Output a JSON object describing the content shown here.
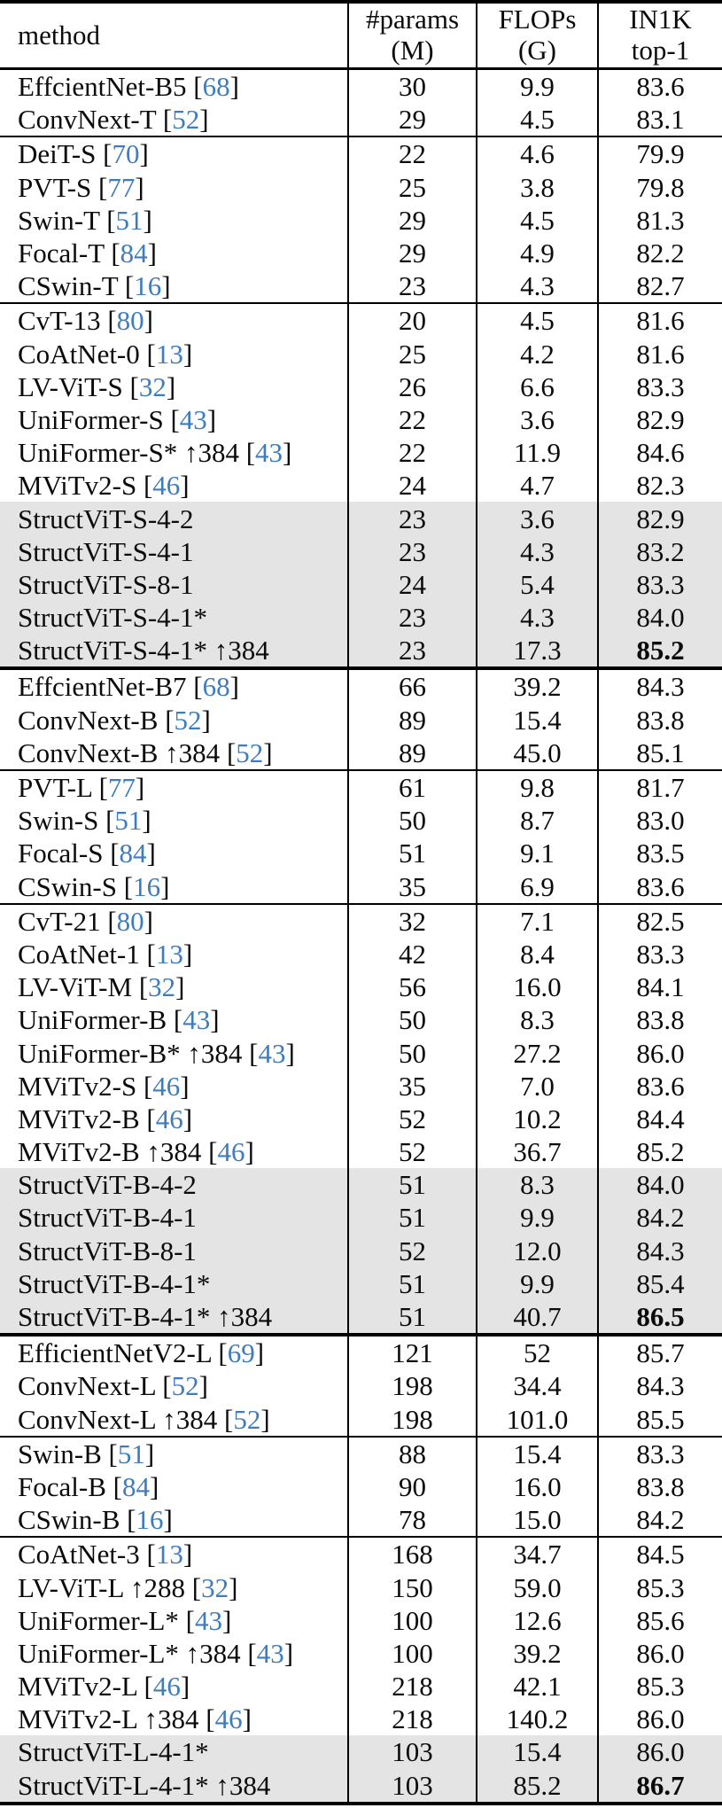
{
  "colors": {
    "cite_blue": "#3e7cbd",
    "row_shade": "#e4e4e4"
  },
  "header": {
    "columns": [
      {
        "lines": [
          "method"
        ]
      },
      {
        "lines": [
          "#params",
          "(M)"
        ]
      },
      {
        "lines": [
          "FLOPs",
          "(G)"
        ]
      },
      {
        "lines": [
          "IN1K",
          "top-1"
        ]
      }
    ]
  },
  "sections": [
    {
      "groups": [
        {
          "rows": [
            {
              "name": "EffcientNet-B5",
              "cite": "68",
              "params": "30",
              "flops": "9.9",
              "top1": "83.6"
            },
            {
              "name": "ConvNext-T",
              "cite": "52",
              "params": "29",
              "flops": "4.5",
              "top1": "83.1"
            }
          ]
        },
        {
          "rows": [
            {
              "name": "DeiT-S",
              "cite": "70",
              "params": "22",
              "flops": "4.6",
              "top1": "79.9"
            },
            {
              "name": "PVT-S",
              "cite": "77",
              "params": "25",
              "flops": "3.8",
              "top1": "79.8"
            },
            {
              "name": "Swin-T",
              "cite": "51",
              "params": "29",
              "flops": "4.5",
              "top1": "81.3"
            },
            {
              "name": "Focal-T",
              "cite": "84",
              "params": "29",
              "flops": "4.9",
              "top1": "82.2"
            },
            {
              "name": "CSwin-T",
              "cite": "16",
              "params": "23",
              "flops": "4.3",
              "top1": "82.7"
            }
          ]
        },
        {
          "rows": [
            {
              "name": "CvT-13",
              "cite": "80",
              "params": "20",
              "flops": "4.5",
              "top1": "81.6"
            },
            {
              "name": "CoAtNet-0",
              "cite": "13",
              "params": "25",
              "flops": "4.2",
              "top1": "81.6"
            },
            {
              "name": "LV-ViT-S",
              "cite": "32",
              "params": "26",
              "flops": "6.6",
              "top1": "83.3"
            },
            {
              "name": "UniFormer-S",
              "cite": "43",
              "params": "22",
              "flops": "3.6",
              "top1": "82.9"
            },
            {
              "name": "UniFormer-S* ↑384",
              "cite": "43",
              "params": "22",
              "flops": "11.9",
              "top1": "84.6"
            },
            {
              "name": "MViTv2-S",
              "cite": "46",
              "params": "24",
              "flops": "4.7",
              "top1": "82.3"
            },
            {
              "name": "StructViT-S-4-2",
              "cite": null,
              "params": "23",
              "flops": "3.6",
              "top1": "82.9",
              "shaded": true
            },
            {
              "name": "StructViT-S-4-1",
              "cite": null,
              "params": "23",
              "flops": "4.3",
              "top1": "83.2",
              "shaded": true
            },
            {
              "name": "StructViT-S-8-1",
              "cite": null,
              "params": "24",
              "flops": "5.4",
              "top1": "83.3",
              "shaded": true
            },
            {
              "name": "StructViT-S-4-1*",
              "cite": null,
              "params": "23",
              "flops": "4.3",
              "top1": "84.0",
              "shaded": true
            },
            {
              "name": "StructViT-S-4-1* ↑384",
              "cite": null,
              "params": "23",
              "flops": "17.3",
              "top1": "85.2",
              "shaded": true,
              "bold": true
            }
          ]
        }
      ]
    },
    {
      "groups": [
        {
          "rows": [
            {
              "name": "EffcientNet-B7",
              "cite": "68",
              "params": "66",
              "flops": "39.2",
              "top1": "84.3"
            },
            {
              "name": "ConvNext-B",
              "cite": "52",
              "params": "89",
              "flops": "15.4",
              "top1": "83.8"
            },
            {
              "name": "ConvNext-B ↑384",
              "cite": "52",
              "params": "89",
              "flops": "45.0",
              "top1": "85.1"
            }
          ]
        },
        {
          "rows": [
            {
              "name": "PVT-L",
              "cite": "77",
              "params": "61",
              "flops": "9.8",
              "top1": "81.7"
            },
            {
              "name": "Swin-S",
              "cite": "51",
              "params": "50",
              "flops": "8.7",
              "top1": "83.0"
            },
            {
              "name": "Focal-S",
              "cite": "84",
              "params": "51",
              "flops": "9.1",
              "top1": "83.5"
            },
            {
              "name": "CSwin-S",
              "cite": "16",
              "params": "35",
              "flops": "6.9",
              "top1": "83.6"
            }
          ]
        },
        {
          "rows": [
            {
              "name": "CvT-21",
              "cite": "80",
              "params": "32",
              "flops": "7.1",
              "top1": "82.5"
            },
            {
              "name": "CoAtNet-1",
              "cite": "13",
              "params": "42",
              "flops": "8.4",
              "top1": "83.3"
            },
            {
              "name": "LV-ViT-M",
              "cite": "32",
              "params": "56",
              "flops": "16.0",
              "top1": "84.1"
            },
            {
              "name": "UniFormer-B",
              "cite": "43",
              "params": "50",
              "flops": "8.3",
              "top1": "83.8"
            },
            {
              "name": "UniFormer-B* ↑384",
              "cite": "43",
              "params": "50",
              "flops": "27.2",
              "top1": "86.0"
            },
            {
              "name": "MViTv2-S",
              "cite": "46",
              "params": "35",
              "flops": "7.0",
              "top1": "83.6"
            },
            {
              "name": "MViTv2-B",
              "cite": "46",
              "params": "52",
              "flops": "10.2",
              "top1": "84.4"
            },
            {
              "name": "MViTv2-B ↑384",
              "cite": "46",
              "params": "52",
              "flops": "36.7",
              "top1": "85.2"
            },
            {
              "name": "StructViT-B-4-2",
              "cite": null,
              "params": "51",
              "flops": "8.3",
              "top1": "84.0",
              "shaded": true
            },
            {
              "name": "StructViT-B-4-1",
              "cite": null,
              "params": "51",
              "flops": "9.9",
              "top1": "84.2",
              "shaded": true
            },
            {
              "name": "StructViT-B-8-1",
              "cite": null,
              "params": "52",
              "flops": "12.0",
              "top1": "84.3",
              "shaded": true
            },
            {
              "name": "StructViT-B-4-1*",
              "cite": null,
              "params": "51",
              "flops": "9.9",
              "top1": "85.4",
              "shaded": true
            },
            {
              "name": "StructViT-B-4-1* ↑384",
              "cite": null,
              "params": "51",
              "flops": "40.7",
              "top1": "86.5",
              "shaded": true,
              "bold": true
            }
          ]
        }
      ]
    },
    {
      "groups": [
        {
          "rows": [
            {
              "name": "EfficientNetV2-L",
              "cite": "69",
              "params": "121",
              "flops": "52",
              "top1": "85.7"
            },
            {
              "name": "ConvNext-L",
              "cite": "52",
              "params": "198",
              "flops": "34.4",
              "top1": "84.3"
            },
            {
              "name": "ConvNext-L ↑384",
              "cite": "52",
              "params": "198",
              "flops": "101.0",
              "top1": "85.5"
            }
          ]
        },
        {
          "rows": [
            {
              "name": "Swin-B",
              "cite": "51",
              "params": "88",
              "flops": "15.4",
              "top1": "83.3"
            },
            {
              "name": "Focal-B",
              "cite": "84",
              "params": "90",
              "flops": "16.0",
              "top1": "83.8"
            },
            {
              "name": "CSwin-B",
              "cite": "16",
              "params": "78",
              "flops": "15.0",
              "top1": "84.2"
            }
          ]
        },
        {
          "rows": [
            {
              "name": "CoAtNet-3",
              "cite": "13",
              "params": "168",
              "flops": "34.7",
              "top1": "84.5"
            },
            {
              "name": "LV-ViT-L ↑288",
              "cite": "32",
              "params": "150",
              "flops": "59.0",
              "top1": "85.3"
            },
            {
              "name": "UniFormer-L*",
              "cite": "43",
              "params": "100",
              "flops": "12.6",
              "top1": "85.6"
            },
            {
              "name": "UniFormer-L* ↑384",
              "cite": "43",
              "params": "100",
              "flops": "39.2",
              "top1": "86.0"
            },
            {
              "name": "MViTv2-L",
              "cite": "46",
              "params": "218",
              "flops": "42.1",
              "top1": "85.3"
            },
            {
              "name": "MViTv2-L ↑384",
              "cite": "46",
              "params": "218",
              "flops": "140.2",
              "top1": "86.0"
            },
            {
              "name": "StructViT-L-4-1*",
              "cite": null,
              "params": "103",
              "flops": "15.4",
              "top1": "86.0",
              "shaded": true
            },
            {
              "name": "StructViT-L-4-1* ↑384",
              "cite": null,
              "params": "103",
              "flops": "85.2",
              "top1": "86.7",
              "shaded": true,
              "bold": true
            }
          ]
        }
      ]
    }
  ]
}
